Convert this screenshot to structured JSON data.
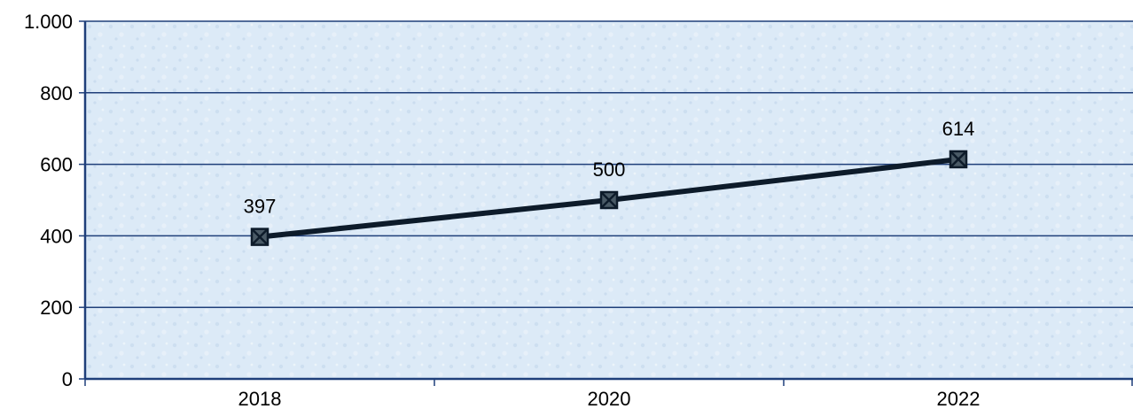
{
  "chart_data": {
    "type": "line",
    "title": "",
    "xlabel": "",
    "ylabel": "",
    "categories": [
      "2018",
      "2020",
      "2022"
    ],
    "series": [
      {
        "values": [
          397,
          500,
          614
        ]
      }
    ],
    "data_labels": [
      "397",
      "500",
      "614"
    ],
    "ylim": [
      0,
      1000
    ],
    "y_ticks": [
      0,
      200,
      400,
      600,
      800,
      1000
    ],
    "y_tick_labels": [
      "0",
      "200",
      "400",
      "600",
      "800",
      "1.000"
    ],
    "grid": true,
    "legend": "none",
    "marker": "square-with-x",
    "colors": {
      "line": "#0d1b2a",
      "marker_fill": "#4a5a66",
      "gridline": "#1f3f7a",
      "plot_background": "#dceaf7",
      "axis": "#1f3f7a"
    }
  }
}
